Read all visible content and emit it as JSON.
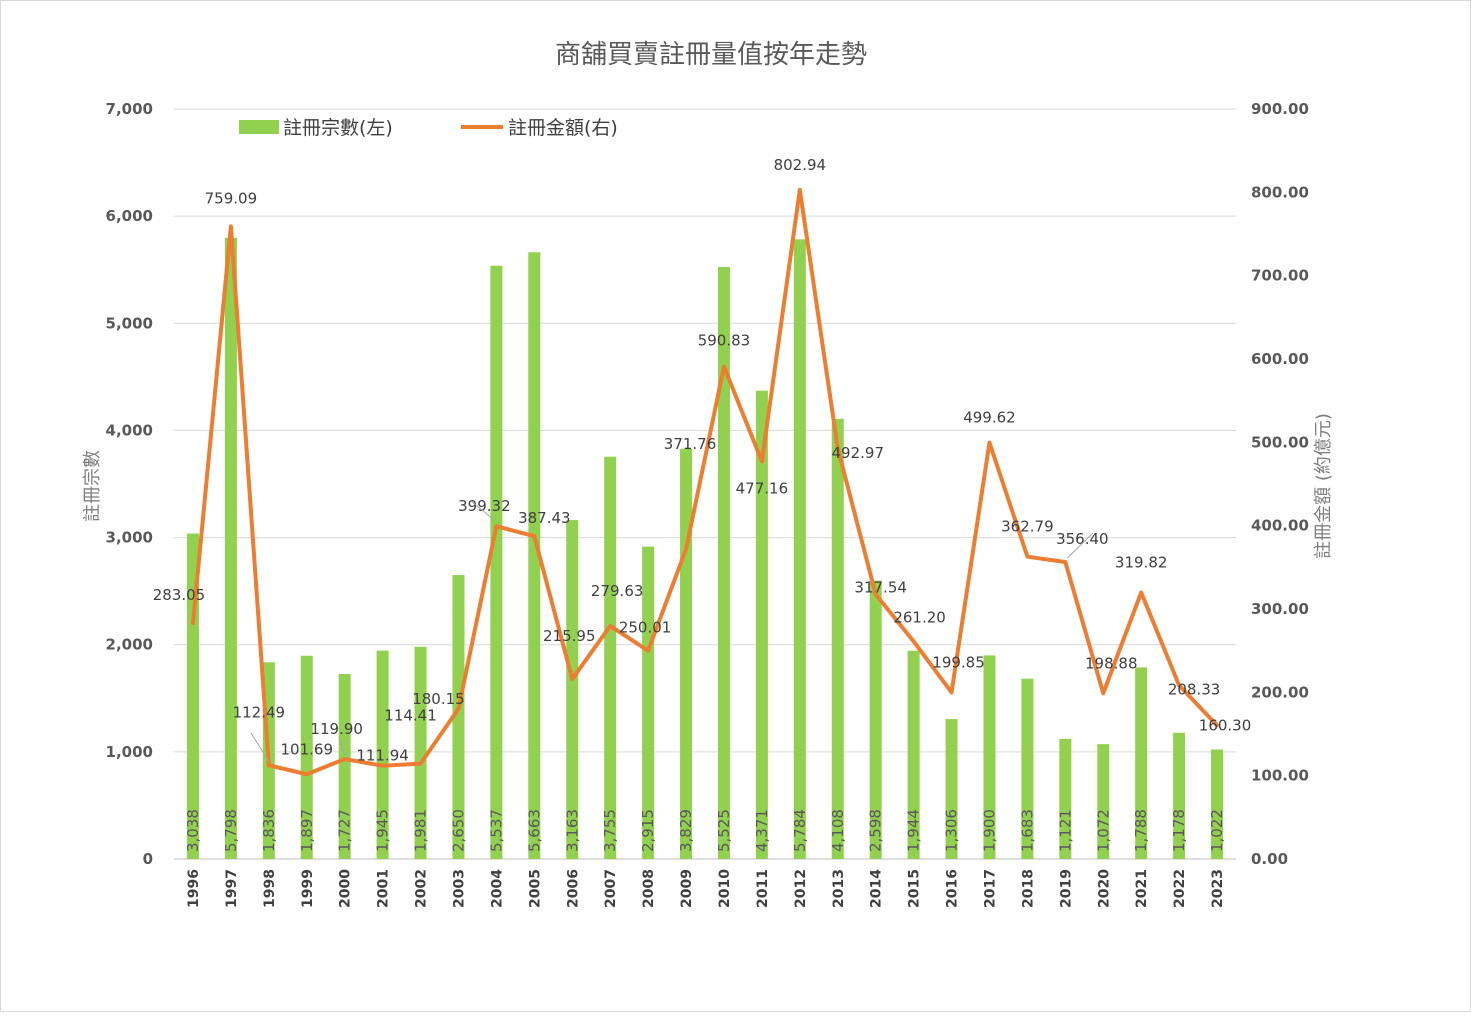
{
  "chart_data": {
    "type": "bar",
    "title": "商舖買賣註冊量值按年走勢",
    "categories": [
      "1996",
      "1997",
      "1998",
      "1999",
      "2000",
      "2001",
      "2002",
      "2003",
      "2004",
      "2005",
      "2006",
      "2007",
      "2008",
      "2009",
      "2010",
      "2011",
      "2012",
      "2013",
      "2014",
      "2015",
      "2016",
      "2017",
      "2018",
      "2019",
      "2020",
      "2021",
      "2022",
      "2023"
    ],
    "series": [
      {
        "name": "註冊宗數(左)",
        "type": "bar",
        "axis": "left",
        "color": "#92d050",
        "values": [
          3038,
          5798,
          1836,
          1897,
          1727,
          1945,
          1981,
          2650,
          5537,
          5663,
          3163,
          3755,
          2915,
          3829,
          5525,
          4371,
          5784,
          4108,
          2598,
          1944,
          1306,
          1900,
          1683,
          1121,
          1072,
          1788,
          1178,
          1022
        ],
        "labels": [
          "3,038",
          "5,798",
          "1,836",
          "1,897",
          "1,727",
          "1,945",
          "1,981",
          "2,650",
          "5,537",
          "5,663",
          "3,163",
          "3,755",
          "2,915",
          "3,829",
          "5,525",
          "4,371",
          "5,784",
          "4,108",
          "2,598",
          "1,944",
          "1,306",
          "1,900",
          "1,683",
          "1,121",
          "1,072",
          "1,788",
          "1,178",
          "1,022"
        ]
      },
      {
        "name": "註冊金額(右)",
        "type": "line",
        "axis": "right",
        "color": "#ed7d31",
        "values": [
          283.05,
          759.09,
          112.49,
          101.69,
          119.9,
          111.94,
          114.41,
          180.15,
          399.32,
          387.43,
          215.95,
          279.63,
          250.01,
          371.76,
          590.83,
          477.16,
          802.94,
          492.97,
          317.54,
          261.2,
          199.85,
          499.62,
          362.79,
          356.4,
          198.88,
          319.82,
          208.33,
          160.3
        ],
        "labels": [
          "283.05",
          "759.09",
          "112.49",
          "101.69",
          "119.90",
          "111.94",
          "114.41",
          "180.15",
          "399.32",
          "387.43",
          "215.95",
          "279.63",
          "250.01",
          "371.76",
          "590.83",
          "477.16",
          "802.94",
          "492.97",
          "317.54",
          "261.20",
          "199.85",
          "499.62",
          "362.79",
          "356.40",
          "198.88",
          "319.82",
          "208.33",
          "160.30"
        ]
      }
    ],
    "ylabel_left": "註冊宗數",
    "ylabel_right": "註冊金額 (約億元)",
    "ylim_left": [
      0,
      7000
    ],
    "ylim_right": [
      0,
      900
    ],
    "yticks_left": [
      "0",
      "1,000",
      "2,000",
      "3,000",
      "4,000",
      "5,000",
      "6,000",
      "7,000"
    ],
    "yticks_right": [
      "0.00",
      "100.00",
      "200.00",
      "300.00",
      "400.00",
      "500.00",
      "600.00",
      "700.00",
      "800.00",
      "900.00"
    ],
    "grid": true,
    "legend": "top-left"
  }
}
